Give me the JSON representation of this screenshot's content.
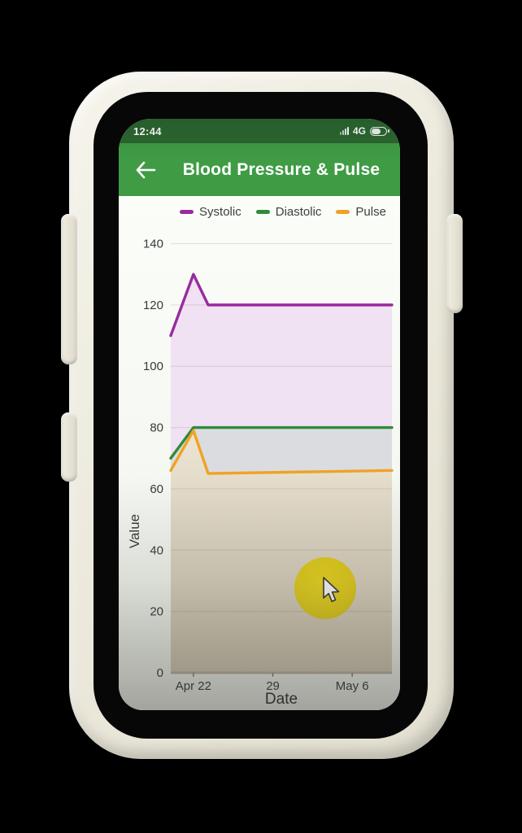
{
  "status_bar": {
    "time": "12:44",
    "network": "4G",
    "battery_level_percent": 60
  },
  "header": {
    "title": "Blood Pressure & Pulse",
    "back_icon": "arrow-left",
    "background_color": "#3f9c45",
    "statusbar_color": "#2c6831"
  },
  "cursor": {
    "type": "arrow-pointer",
    "touch_indicator_color": "#dcc81d"
  },
  "chart_data": {
    "type": "area",
    "title": "",
    "xlabel": "Date",
    "ylabel": "Value",
    "xlim": [
      0,
      19.5
    ],
    "ylim": [
      0,
      142
    ],
    "x_unit": "days (0 = Apr 20)",
    "grid": "horizontal",
    "legend_position": "top",
    "yticks": [
      0,
      20,
      40,
      60,
      80,
      100,
      120,
      140
    ],
    "xticks": [
      {
        "x": 2,
        "label": "Apr 22"
      },
      {
        "x": 9,
        "label": "29"
      },
      {
        "x": 16,
        "label": "May 6"
      }
    ],
    "series": [
      {
        "name": "Systolic",
        "color": "#992b9e",
        "fill": "#f0e2f2",
        "points": [
          [
            0,
            110
          ],
          [
            2,
            130
          ],
          [
            3.3,
            120
          ],
          [
            19.5,
            120
          ]
        ]
      },
      {
        "name": "Diastolic",
        "color": "#2f8b3a",
        "fill": "#dbdcdf",
        "points": [
          [
            0,
            70
          ],
          [
            2,
            80
          ],
          [
            19.5,
            80
          ]
        ]
      },
      {
        "name": "Pulse",
        "color": "#f0a225",
        "fill_gradient": [
          "#ede5d3",
          "#c7beaa"
        ],
        "points": [
          [
            0,
            66
          ],
          [
            2,
            79
          ],
          [
            3.3,
            65
          ],
          [
            19.5,
            66
          ]
        ]
      }
    ],
    "axis_line_color": "#b2a998",
    "gridline_color": "rgba(110,100,88,0.16)"
  }
}
